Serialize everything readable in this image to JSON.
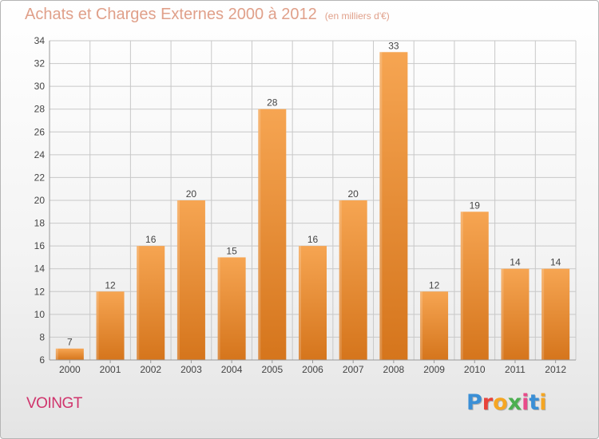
{
  "header": {
    "title": "Achats et Charges Externes 2000 à 2012",
    "unit": "(en milliers d'€)"
  },
  "commune": "VOINGT",
  "brand": {
    "text": "Proxiti",
    "letter_colors": [
      "#3a8fd6",
      "#e8433a",
      "#f5a623",
      "#4caf50",
      "#e84b8a",
      "#3a8fd6",
      "#f5a623"
    ]
  },
  "colors": {
    "bar_light": "#f6a552",
    "bar_dark": "#d5751c",
    "grid": "#c8c8c8",
    "axis_text": "#444444",
    "title": "#e0a08a",
    "commune": "#d0346c"
  },
  "chart_data": {
    "type": "bar",
    "title": "Achats et Charges Externes 2000 à 2012",
    "subtitle": "(en milliers d'€)",
    "categories": [
      "2000",
      "2001",
      "2002",
      "2003",
      "2004",
      "2005",
      "2006",
      "2007",
      "2008",
      "2009",
      "2010",
      "2011",
      "2012"
    ],
    "values": [
      7,
      12,
      16,
      20,
      15,
      28,
      16,
      20,
      33,
      12,
      19,
      14,
      14
    ],
    "ylim": [
      6,
      34
    ],
    "yticks": [
      6,
      8,
      10,
      12,
      14,
      16,
      18,
      20,
      22,
      24,
      26,
      28,
      30,
      32,
      34
    ],
    "grid": true,
    "data_labels": true
  }
}
